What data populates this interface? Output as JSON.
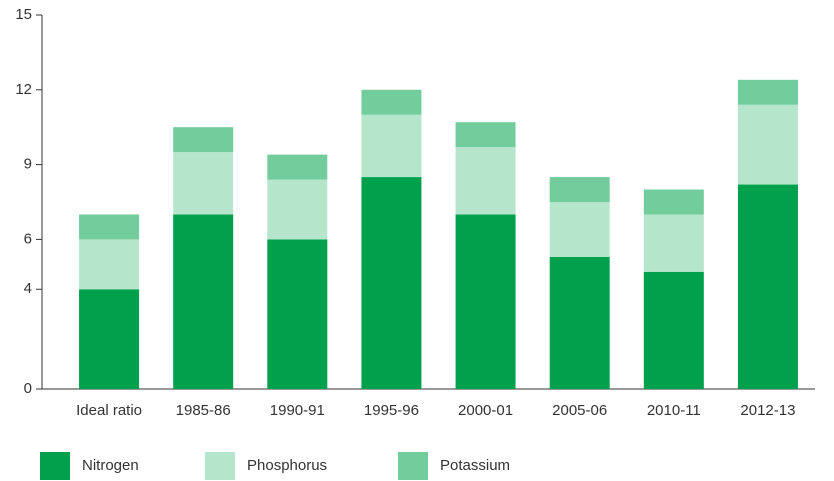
{
  "chart_data": {
    "type": "stacked_bar",
    "categories": [
      "Ideal ratio",
      "1985-86",
      "1990-91",
      "1995-96",
      "2000-01",
      "2005-06",
      "2010-11",
      "2012-13"
    ],
    "series": [
      {
        "name": "Nitrogen",
        "color": "#00a04c",
        "values": [
          4,
          7,
          6,
          8.5,
          7,
          5.3,
          4.7,
          8.2
        ]
      },
      {
        "name": "Phosphorus",
        "color": "#b5e6cc",
        "values": [
          2,
          2.5,
          2.4,
          2.5,
          2.7,
          2.2,
          2.3,
          3.2
        ]
      },
      {
        "name": "Potassium",
        "color": "#72cc9c",
        "values": [
          1,
          1,
          1,
          1,
          1,
          1,
          1,
          1
        ]
      }
    ],
    "ylim": [
      0,
      15
    ],
    "yticks": [
      0,
      4,
      6,
      9,
      12,
      15
    ],
    "legend": "bottom"
  }
}
